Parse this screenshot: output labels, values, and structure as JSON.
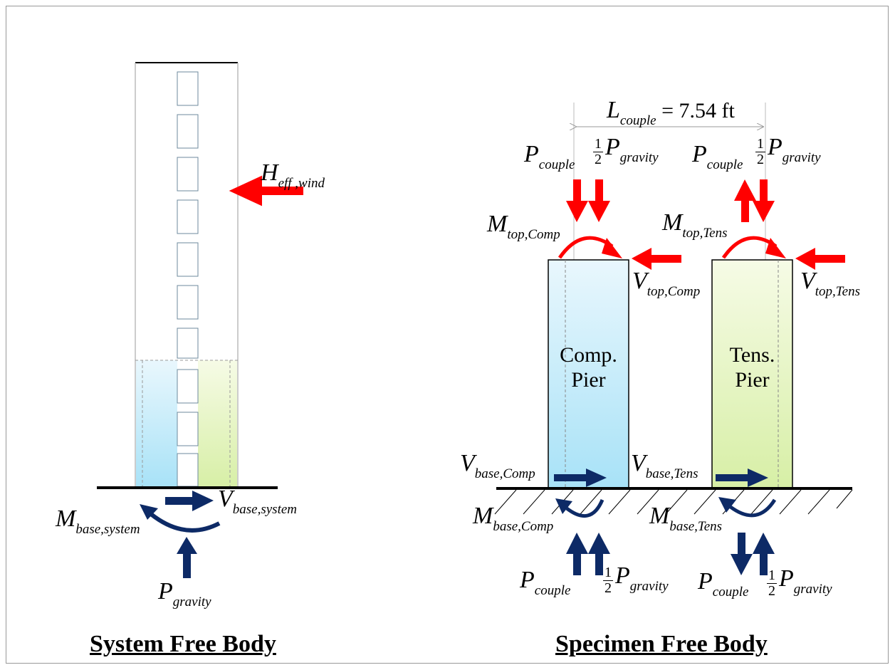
{
  "captions": {
    "system": "System Free Body",
    "specimen": "Specimen Free Body"
  },
  "piers": {
    "comp": "Comp.\nPier",
    "tens": "Tens.\nPier"
  },
  "labels": {
    "h_eff_wind": {
      "main": "H",
      "sub": "eff ,wind"
    },
    "m_base_system": {
      "main": "M",
      "sub": "base,system"
    },
    "v_base_system": {
      "main": "V",
      "sub": "base,system"
    },
    "p_gravity_system": {
      "main": "P",
      "sub": "gravity"
    },
    "l_couple": {
      "main": "L",
      "sub": "couple",
      "rest": " = 7.54 ft"
    },
    "p_couple_top_left": {
      "main": "P",
      "sub": "couple"
    },
    "half_p_gravity_top_left": {
      "num": "1",
      "den": "2",
      "main": "P",
      "sub": "gravity"
    },
    "p_couple_top_right": {
      "main": "P",
      "sub": "couple"
    },
    "half_p_gravity_top_right": {
      "num": "1",
      "den": "2",
      "main": "P",
      "sub": "gravity"
    },
    "m_top_comp": {
      "main": "M",
      "sub": "top,Comp"
    },
    "m_top_tens": {
      "main": "M",
      "sub": "top,Tens"
    },
    "v_top_comp": {
      "main": "V",
      "sub": "top,Comp"
    },
    "v_top_tens": {
      "main": "V",
      "sub": "top,Tens"
    },
    "v_base_comp": {
      "main": "V",
      "sub": "base,Comp"
    },
    "v_base_tens": {
      "main": "V",
      "sub": "base,Tens"
    },
    "m_base_comp": {
      "main": "M",
      "sub": "base,Comp"
    },
    "m_base_tens": {
      "main": "M",
      "sub": "base,Tens"
    },
    "p_couple_bottom_left": {
      "main": "P",
      "sub": "couple"
    },
    "half_p_gravity_bottom_left": {
      "num": "1",
      "den": "2",
      "main": "P",
      "sub": "gravity"
    },
    "p_couple_bottom_right": {
      "main": "P",
      "sub": "couple"
    },
    "half_p_gravity_bottom_right": {
      "num": "1",
      "den": "2",
      "main": "P",
      "sub": "gravity"
    }
  },
  "colors": {
    "red_arrow": "#ff0000",
    "navy_arrow": "#0d2a66",
    "comp_fill_top": "#e9f7fd",
    "comp_fill_bottom": "#a8e2f7",
    "tens_fill_top": "#f6fbe6",
    "tens_fill_bottom": "#d7efa6"
  }
}
